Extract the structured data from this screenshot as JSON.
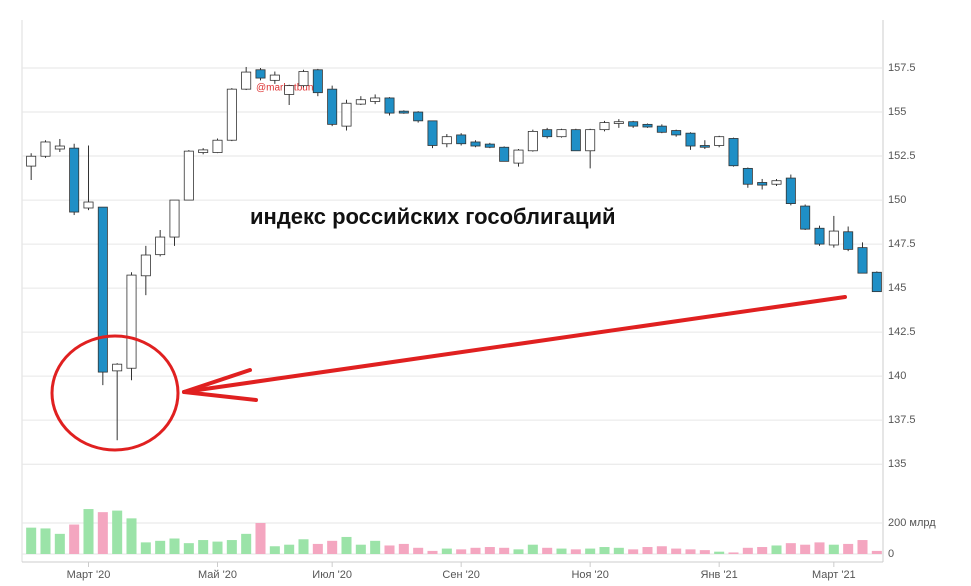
{
  "chart_data": {
    "type": "candlestick",
    "annotation": "индекс российских гособлигаций",
    "watermark": "@marketbunki",
    "categories": [
      null,
      null,
      null,
      null,
      "Март '20",
      null,
      null,
      null,
      null,
      null,
      null,
      null,
      null,
      "Май '20",
      null,
      null,
      null,
      null,
      null,
      null,
      null,
      "Июл '20",
      null,
      null,
      null,
      null,
      null,
      null,
      null,
      null,
      "Сен '20",
      null,
      null,
      null,
      null,
      null,
      null,
      null,
      null,
      "Ноя '20",
      null,
      null,
      null,
      null,
      null,
      null,
      null,
      null,
      "Янв '21",
      null,
      null,
      null,
      null,
      null,
      null,
      null,
      "Март '21",
      null,
      null,
      null
    ],
    "open": [
      151.93,
      152.49,
      152.9,
      152.95,
      149.55,
      149.6,
      140.3,
      140.45,
      145.7,
      146.9,
      147.9,
      150.0,
      152.7,
      152.7,
      153.4,
      156.3,
      157.4,
      156.8,
      156.0,
      156.5,
      157.4,
      156.3,
      154.2,
      155.45,
      155.6,
      155.8,
      155.05,
      155.0,
      154.5,
      153.2,
      153.7,
      153.3,
      153.18,
      153.0,
      152.1,
      152.8,
      154.0,
      153.6,
      154.0,
      152.8,
      154.0,
      154.35,
      154.45,
      154.3,
      154.2,
      153.95,
      153.8,
      153.1,
      153.1,
      153.5,
      151.8,
      151.0,
      150.9,
      151.25,
      149.66,
      148.4,
      147.45,
      148.2,
      147.3,
      145.9
    ],
    "high": [
      152.66,
      153.4,
      153.47,
      153.2,
      153.1,
      149.6,
      140.74,
      145.9,
      147.4,
      148.3,
      150.0,
      152.84,
      152.95,
      153.5,
      156.36,
      157.56,
      157.5,
      157.3,
      156.55,
      157.4,
      157.45,
      156.5,
      155.7,
      155.9,
      156.0,
      155.85,
      155.1,
      155.05,
      154.5,
      153.75,
      153.8,
      153.4,
      153.25,
      153.05,
      152.9,
      154.0,
      154.1,
      154.05,
      154.05,
      154.05,
      154.5,
      154.6,
      154.5,
      154.35,
      154.3,
      154.0,
      153.85,
      153.4,
      153.65,
      153.55,
      151.85,
      151.2,
      151.2,
      151.45,
      149.75,
      148.55,
      149.1,
      148.5,
      147.6,
      145.95
    ],
    "low": [
      151.14,
      152.4,
      152.73,
      149.15,
      149.43,
      139.49,
      136.36,
      139.77,
      144.6,
      146.8,
      147.4,
      150.0,
      152.6,
      152.67,
      153.35,
      156.25,
      156.8,
      156.6,
      155.4,
      156.4,
      155.9,
      154.2,
      153.95,
      155.4,
      155.45,
      154.8,
      154.9,
      154.4,
      152.95,
      153.0,
      153.1,
      153.0,
      152.95,
      152.2,
      151.9,
      152.75,
      153.5,
      153.55,
      152.8,
      151.8,
      153.9,
      154.1,
      154.1,
      154.1,
      153.8,
      153.6,
      152.85,
      152.9,
      153.0,
      151.9,
      150.7,
      150.6,
      150.8,
      149.7,
      148.3,
      147.4,
      147.3,
      147.1,
      145.85,
      144.8
    ],
    "close": [
      152.49,
      153.3,
      153.07,
      149.32,
      149.89,
      140.23,
      140.68,
      145.74,
      146.88,
      147.9,
      150.0,
      152.78,
      152.85,
      153.4,
      156.3,
      157.27,
      156.93,
      157.1,
      156.5,
      157.3,
      156.1,
      154.3,
      155.5,
      155.7,
      155.8,
      154.94,
      154.94,
      154.5,
      153.1,
      153.6,
      153.2,
      153.07,
      153.0,
      152.2,
      152.84,
      153.9,
      153.6,
      154.0,
      152.8,
      154.0,
      154.4,
      154.45,
      154.2,
      154.15,
      153.85,
      153.7,
      153.07,
      153.0,
      153.6,
      151.95,
      150.9,
      150.85,
      151.1,
      149.8,
      148.35,
      147.5,
      148.24,
      147.2,
      145.85,
      144.8
    ],
    "up_color": "#ffffff",
    "down_color": "#1f8fc6",
    "ylim": [
      134.5,
      160
    ],
    "yticks": [
      135,
      137.5,
      140,
      142.5,
      145,
      147.5,
      150,
      152.5,
      155,
      157.5
    ],
    "grid": true,
    "volume": {
      "values": [
        170,
        165,
        130,
        190,
        290,
        270,
        280,
        230,
        75,
        85,
        100,
        70,
        90,
        80,
        90,
        130,
        200,
        50,
        60,
        95,
        65,
        85,
        110,
        60,
        85,
        55,
        65,
        40,
        20,
        35,
        30,
        40,
        45,
        40,
        30,
        60,
        40,
        35,
        30,
        35,
        45,
        40,
        30,
        45,
        50,
        35,
        30,
        25,
        15,
        10,
        40,
        45,
        55,
        70,
        60,
        75,
        60,
        65,
        90,
        20
      ],
      "up_color": "#9be3a8",
      "down_color": "#f4a6c0",
      "ylim": [
        0,
        400
      ],
      "yticks": [
        0,
        {
          "value": 200,
          "label": "200 млрд"
        }
      ]
    }
  }
}
